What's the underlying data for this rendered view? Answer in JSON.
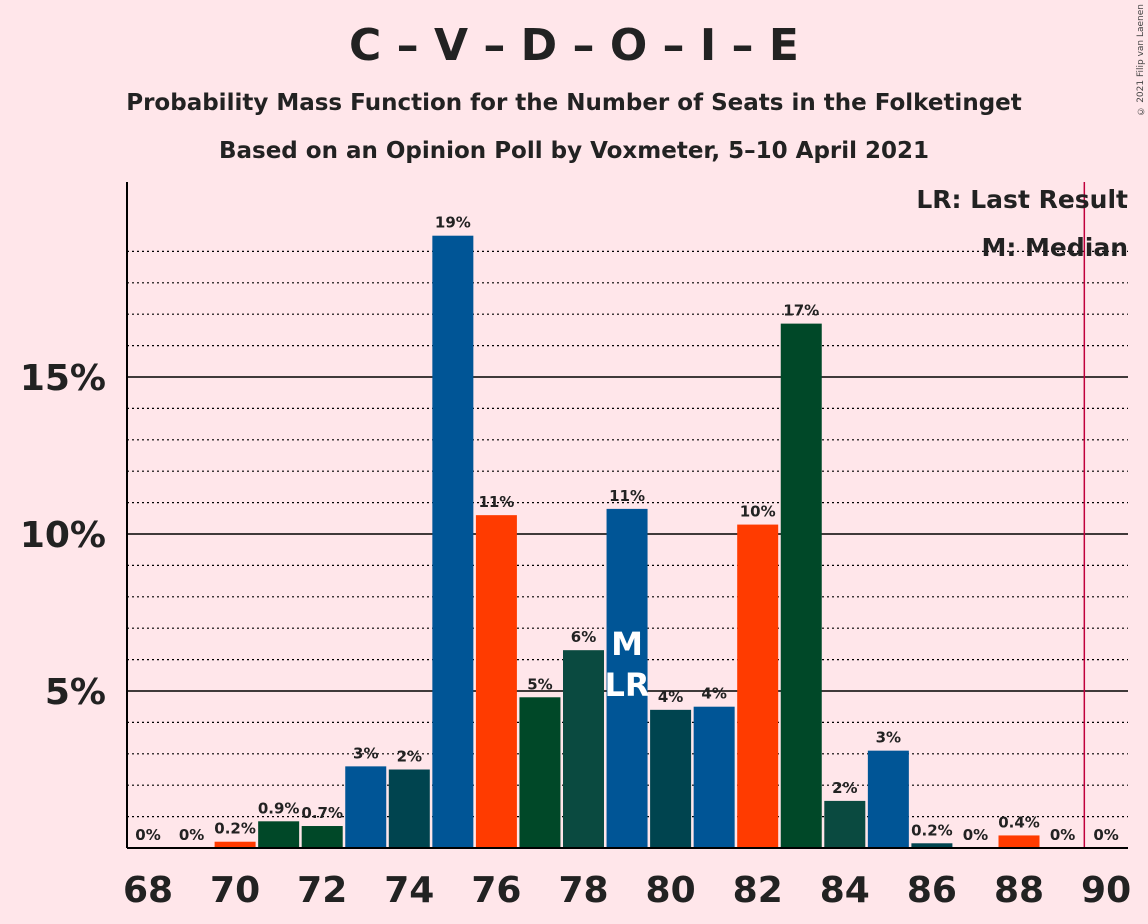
{
  "title": "C – V – D – O – I – E",
  "subtitle": "Probability Mass Function for the Number of Seats in the Folketinget",
  "subtitle2": "Based on an Opinion Poll by Voxmeter, 5–10 April 2021",
  "copyright": "© 2021 Filip van Laenen",
  "legend": {
    "last_result": "LR: Last Result",
    "median": "M: Median"
  },
  "chart_data": {
    "type": "bar",
    "x": [
      68,
      69,
      70,
      71,
      72,
      73,
      74,
      75,
      76,
      77,
      78,
      79,
      80,
      81,
      82,
      83,
      84,
      85,
      86,
      87,
      88,
      89,
      90
    ],
    "values": [
      0,
      0,
      0.2,
      0.85,
      0.7,
      2.6,
      2.5,
      19.5,
      10.6,
      4.8,
      6.3,
      10.8,
      4.4,
      4.5,
      10.3,
      16.7,
      1.5,
      3.1,
      0.15,
      0,
      0.4,
      0,
      0
    ],
    "data_labels": [
      "0%",
      "0%",
      "0.2%",
      "0.9%",
      "0.7%",
      "3%",
      "2%",
      "19%",
      "11%",
      "5%",
      "6%",
      "11%",
      "4%",
      "4%",
      "10%",
      "17%",
      "2%",
      "3%",
      "0.2%",
      "0%",
      "0.4%",
      "0%",
      "0%"
    ],
    "colors": [
      "#005596",
      "#005596",
      "#FF3B00",
      "#004828",
      "#004828",
      "#005596",
      "#00444F",
      "#005596",
      "#FF3B00",
      "#004828",
      "#0A4A40",
      "#005596",
      "#00444F",
      "#005596",
      "#FF3B00",
      "#004828",
      "#0A4A40",
      "#005596",
      "#00444F",
      "#005596",
      "#FF3B00",
      "#004828",
      "#0A4A40"
    ],
    "x_ticks": [
      "68",
      "70",
      "72",
      "74",
      "76",
      "78",
      "80",
      "82",
      "84",
      "86",
      "88",
      "90"
    ],
    "y_ticks": [
      "5%",
      "10%",
      "15%"
    ],
    "ylim": [
      0,
      21
    ],
    "median_seat": 79,
    "last_result_seat": 79,
    "median_marker": "M",
    "last_result_marker": "LR",
    "majority_line": 89.5,
    "majority_line_color": "#C0003C"
  }
}
